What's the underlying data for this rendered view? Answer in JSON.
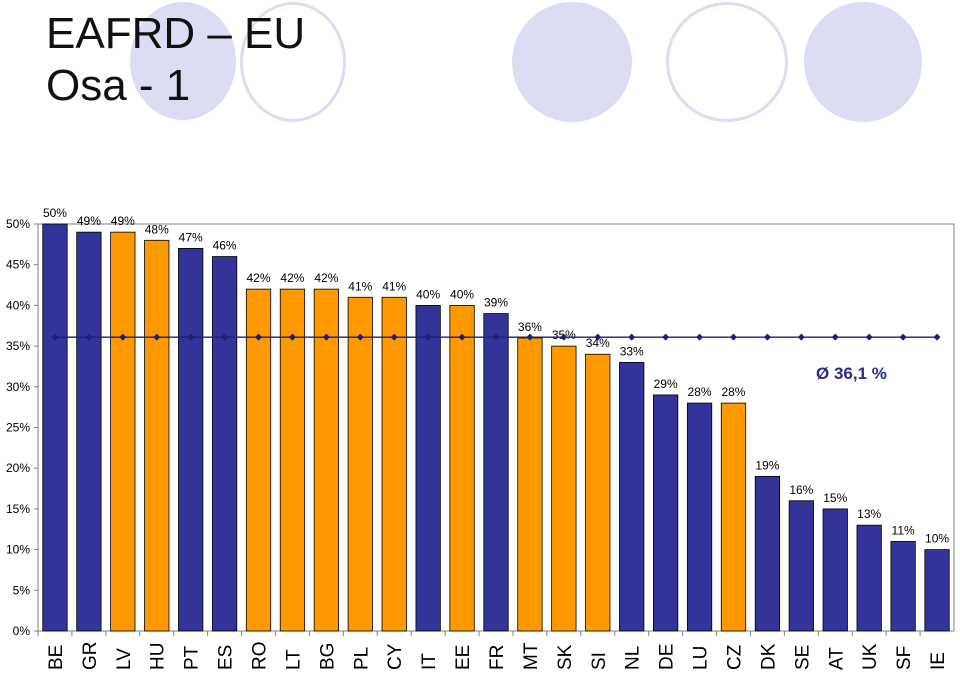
{
  "title_line1": "EAFRD – EU",
  "title_line2": "Osa - 1",
  "chart_data": {
    "type": "bar",
    "categories": [
      "BE",
      "GR",
      "LV",
      "HU",
      "PT",
      "ES",
      "RO",
      "LT",
      "BG",
      "PL",
      "CY",
      "IT",
      "EE",
      "FR",
      "MT",
      "SK",
      "SI",
      "NL",
      "DE",
      "LU",
      "CZ",
      "DK",
      "SE",
      "AT",
      "UK",
      "SF",
      "IE"
    ],
    "values": [
      50,
      49,
      49,
      48,
      47,
      46,
      42,
      42,
      42,
      41,
      41,
      40,
      40,
      39,
      36,
      35,
      34,
      33,
      29,
      28,
      28,
      19,
      16,
      15,
      13,
      11,
      10
    ],
    "data_labels": [
      "50%",
      "49%",
      "49%",
      "48%",
      "47%",
      "46%",
      "42%",
      "42%",
      "42%",
      "41%",
      "41%",
      "40%",
      "40%",
      "39%",
      "36%",
      "35%",
      "34%",
      "33%",
      "29%",
      "28%",
      "28%",
      "19%",
      "16%",
      "15%",
      "13%",
      "11%",
      "10%"
    ],
    "bar_colors": [
      "blue",
      "blue",
      "orange",
      "orange",
      "blue",
      "blue",
      "orange",
      "orange",
      "orange",
      "orange",
      "orange",
      "blue",
      "orange",
      "blue",
      "orange",
      "orange",
      "orange",
      "blue",
      "blue",
      "blue",
      "orange",
      "blue",
      "blue",
      "blue",
      "blue",
      "blue",
      "blue"
    ],
    "colors": {
      "blue": "#33339a",
      "orange": "#ff9900",
      "average_line": "#1f1f7a"
    },
    "average_value": 36.1,
    "average_label": "Ø 36,1 %",
    "y_ticks": [
      "0%",
      "5%",
      "10%",
      "15%",
      "20%",
      "25%",
      "30%",
      "35%",
      "40%",
      "45%",
      "50%"
    ],
    "ylim": [
      0,
      50
    ],
    "grid": false,
    "title": "",
    "xlabel": "",
    "ylabel": ""
  }
}
